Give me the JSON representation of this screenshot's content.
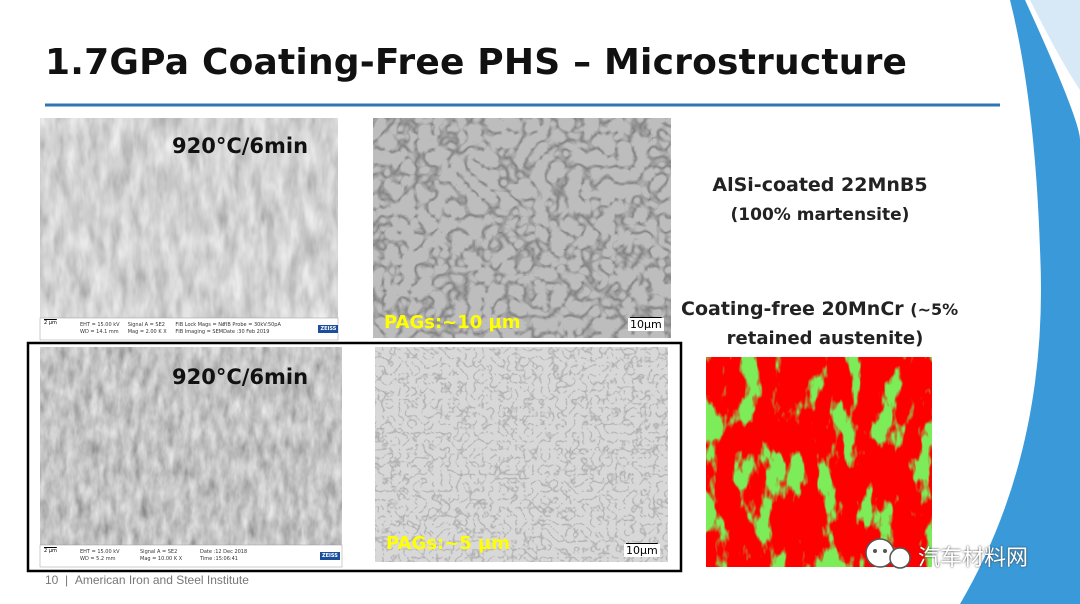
{
  "header": {
    "title": "1.7GPa Coating-Free PHS – Microstructure"
  },
  "images": [
    {
      "label": "920°C/6min",
      "scale_bar": "2 µm",
      "info": [
        "EHT = 15.00 kV",
        "WD = 14.1 mm",
        "Signal A = SE2",
        "Mag = 2.00 K X",
        "FIB Lock Mags = No",
        "FIB Imaging = SEM",
        "FIB Probe = 30kV:50pA",
        "Date :30 Feb 2019",
        "ZEISS"
      ]
    },
    {
      "label": "PAGs:~10 µm",
      "scale_bar": "10µm"
    },
    {
      "label": "920°C/6min",
      "scale_bar": "2 µm",
      "info": [
        "EHT = 15.00 kV",
        "WD = 5.2 mm",
        "Signal A = SE2",
        "Mag = 10.00 K X",
        "Date :12 Dec 2018",
        "Time :15:06:41",
        "ZEISS"
      ]
    },
    {
      "label": "PAGs:~5 µm",
      "scale_bar": "10µm"
    }
  ],
  "notes": {
    "alsi": {
      "name": "AlSi-coated 22MnB5",
      "detail": "(100% martensite)"
    },
    "coating_free": {
      "name": "Coating-free 20MnCr",
      "detail_start": "(~5%",
      "detail_end": "retained austenite)"
    }
  },
  "watermark": "汽车材料网",
  "footer": {
    "page": "10",
    "separator": "|",
    "organization": "American Iron and Steel Institute"
  }
}
